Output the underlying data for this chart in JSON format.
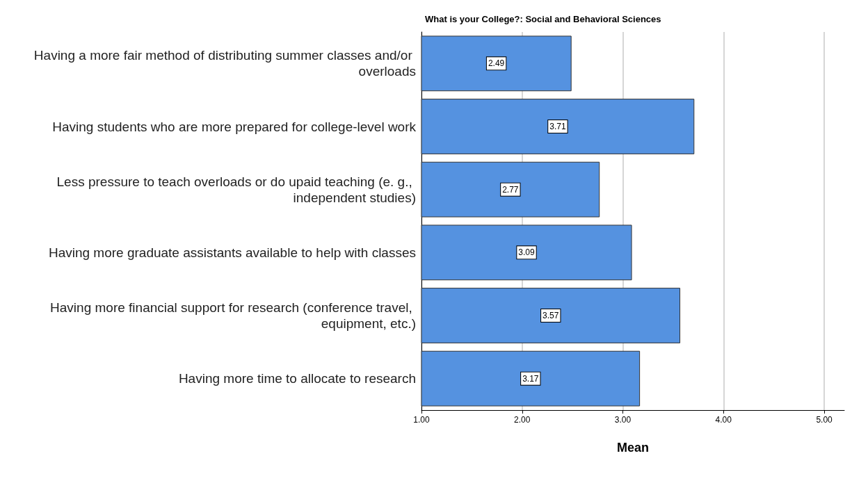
{
  "chart_data": {
    "type": "bar",
    "orientation": "horizontal",
    "title": "What is your College?: Social and Behavioral Sciences",
    "xlabel": "Mean",
    "categories": [
      "Having a more fair method of distributing summer classes and/or overloads",
      "Having students who are more prepared for college-level work",
      "Less pressure to teach overloads or do upaid teaching (e. g., independent studies)",
      "Having more graduate assistants available to help with classes",
      "Having more financial support for research (conference travel, equipment, etc.)",
      "Having more time to allocate to research"
    ],
    "values": [
      2.49,
      3.71,
      2.77,
      3.09,
      3.57,
      3.17
    ],
    "color": "#5592e0",
    "xlim": [
      1,
      5.2
    ],
    "xticks": [
      {
        "value": 1,
        "label": "1.00"
      },
      {
        "value": 2,
        "label": "2.00"
      },
      {
        "value": 3,
        "label": "3.00"
      },
      {
        "value": 4,
        "label": "4.00"
      },
      {
        "value": 5,
        "label": "5.00"
      }
    ],
    "grid": "x",
    "data_labels": true
  }
}
